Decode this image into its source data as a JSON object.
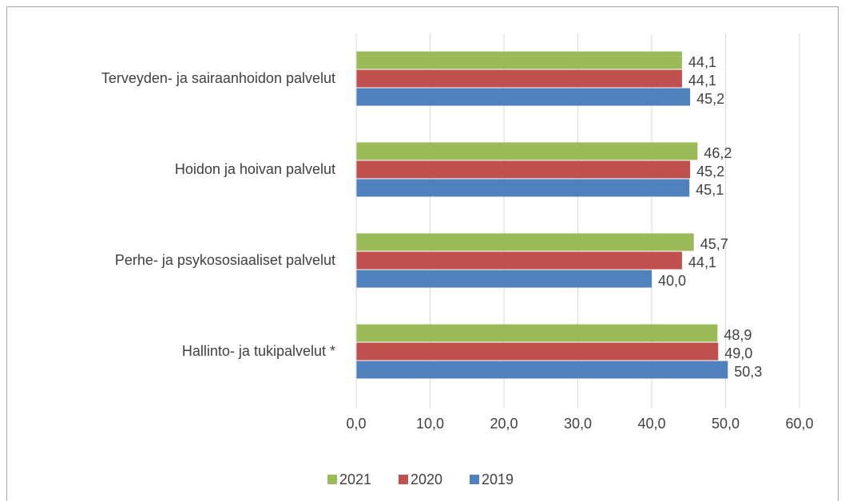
{
  "chart_data": {
    "type": "bar",
    "orientation": "horizontal",
    "categories": [
      "Terveyden- ja sairaanhoidon palvelut",
      "Hoidon ja hoivan palvelut",
      "Perhe- ja psykososiaaliset palvelut",
      "Hallinto- ja tukipalvelut *"
    ],
    "series": [
      {
        "name": "2021",
        "color": "#9bbb59",
        "values": [
          44.1,
          46.2,
          45.7,
          48.9
        ],
        "value_labels": [
          "44,1",
          "46,2",
          "45,7",
          "48,9"
        ]
      },
      {
        "name": "2020",
        "color": "#c0504d",
        "values": [
          44.1,
          45.2,
          44.1,
          49.0
        ],
        "value_labels": [
          "44,1",
          "45,2",
          "44,1",
          "49,0"
        ]
      },
      {
        "name": "2019",
        "color": "#4f81bd",
        "values": [
          45.2,
          45.1,
          40.0,
          50.3
        ],
        "value_labels": [
          "45,2",
          "45,1",
          "40,0",
          "50,3"
        ]
      }
    ],
    "xlim": [
      0,
      60
    ],
    "xticks": [
      {
        "value": 0,
        "label": "0,0"
      },
      {
        "value": 10,
        "label": "10,0"
      },
      {
        "value": 20,
        "label": "20,0"
      },
      {
        "value": 30,
        "label": "30,0"
      },
      {
        "value": 40,
        "label": "40,0"
      },
      {
        "value": 50,
        "label": "50,0"
      },
      {
        "value": 60,
        "label": "60,0"
      }
    ],
    "grid": true,
    "legend": "bottom"
  }
}
